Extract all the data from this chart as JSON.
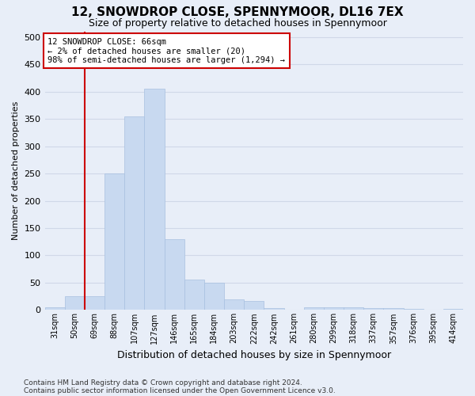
{
  "title": "12, SNOWDROP CLOSE, SPENNYMOOR, DL16 7EX",
  "subtitle": "Size of property relative to detached houses in Spennymoor",
  "xlabel": "Distribution of detached houses by size in Spennymoor",
  "ylabel": "Number of detached properties",
  "categories": [
    "31sqm",
    "50sqm",
    "69sqm",
    "88sqm",
    "107sqm",
    "127sqm",
    "146sqm",
    "165sqm",
    "184sqm",
    "203sqm",
    "222sqm",
    "242sqm",
    "261sqm",
    "280sqm",
    "299sqm",
    "318sqm",
    "337sqm",
    "357sqm",
    "376sqm",
    "395sqm",
    "414sqm"
  ],
  "values": [
    5,
    25,
    25,
    250,
    355,
    405,
    130,
    55,
    50,
    20,
    17,
    4,
    1,
    5,
    5,
    5,
    4,
    4,
    2,
    1,
    2
  ],
  "bar_color": "#c8d9f0",
  "bar_edge_color": "#a8c0e0",
  "vline_x_index": 1.5,
  "vline_color": "#cc0000",
  "annotation_text": "12 SNOWDROP CLOSE: 66sqm\n← 2% of detached houses are smaller (20)\n98% of semi-detached houses are larger (1,294) →",
  "annotation_box_color": "#ffffff",
  "annotation_box_edge_color": "#cc0000",
  "ylim": [
    0,
    510
  ],
  "yticks": [
    0,
    50,
    100,
    150,
    200,
    250,
    300,
    350,
    400,
    450,
    500
  ],
  "grid_color": "#d0d8e8",
  "footer_line1": "Contains HM Land Registry data © Crown copyright and database right 2024.",
  "footer_line2": "Contains public sector information licensed under the Open Government Licence v3.0.",
  "bg_color": "#e8eef8",
  "plot_bg_color": "#e8eef8",
  "title_fontsize": 11,
  "subtitle_fontsize": 9
}
